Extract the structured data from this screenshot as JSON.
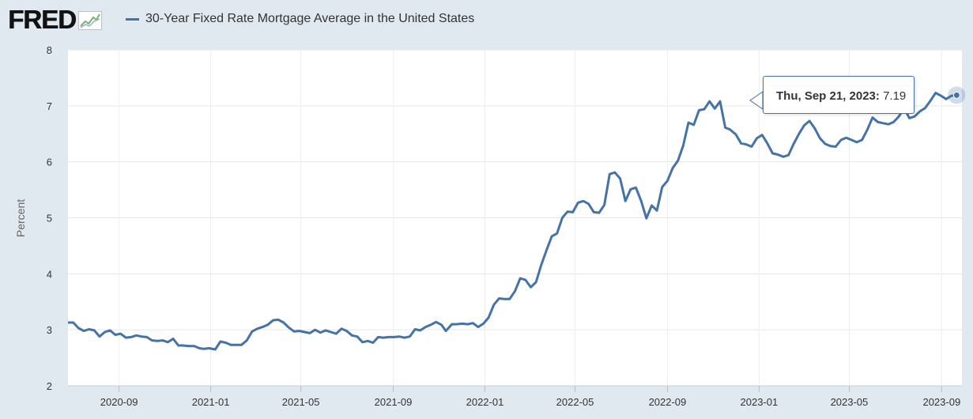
{
  "header": {
    "logo_text": "FRED",
    "logo_icon": "fred-graph-icon",
    "legend_label": "30-Year Fixed Rate Mortgage Average in the United States",
    "series_color": "#4572a7"
  },
  "tooltip": {
    "date": "Thu, Sep 21, 2023:",
    "value": "7.19"
  },
  "chart_data": {
    "type": "line",
    "title": "",
    "xlabel": "",
    "ylabel": "Percent",
    "ylim": [
      2,
      8
    ],
    "xlim": [
      "2020-06-25",
      "2023-09-28"
    ],
    "yticks": [
      2,
      3,
      4,
      5,
      6,
      7,
      8
    ],
    "xticks": [
      "2020-09",
      "2021-01",
      "2021-05",
      "2021-09",
      "2022-01",
      "2022-05",
      "2022-09",
      "2023-01",
      "2023-05",
      "2023-09"
    ],
    "grid": true,
    "legend": "top-left",
    "series": [
      {
        "name": "30-Year Fixed Rate Mortgage Average in the United States",
        "color": "#4572a7",
        "x": [
          "2020-06-25",
          "2020-07-02",
          "2020-07-09",
          "2020-07-16",
          "2020-07-23",
          "2020-07-30",
          "2020-08-06",
          "2020-08-13",
          "2020-08-20",
          "2020-08-27",
          "2020-09-03",
          "2020-09-10",
          "2020-09-17",
          "2020-09-24",
          "2020-10-01",
          "2020-10-08",
          "2020-10-15",
          "2020-10-22",
          "2020-10-29",
          "2020-11-05",
          "2020-11-12",
          "2020-11-19",
          "2020-11-25",
          "2020-12-03",
          "2020-12-10",
          "2020-12-17",
          "2020-12-23",
          "2020-12-30",
          "2021-01-07",
          "2021-01-14",
          "2021-01-21",
          "2021-01-28",
          "2021-02-04",
          "2021-02-11",
          "2021-02-18",
          "2021-02-25",
          "2021-03-04",
          "2021-03-11",
          "2021-03-18",
          "2021-03-25",
          "2021-04-01",
          "2021-04-08",
          "2021-04-15",
          "2021-04-22",
          "2021-04-29",
          "2021-05-06",
          "2021-05-13",
          "2021-05-20",
          "2021-05-27",
          "2021-06-03",
          "2021-06-10",
          "2021-06-17",
          "2021-06-24",
          "2021-07-01",
          "2021-07-08",
          "2021-07-15",
          "2021-07-22",
          "2021-07-29",
          "2021-08-05",
          "2021-08-12",
          "2021-08-19",
          "2021-08-26",
          "2021-09-02",
          "2021-09-09",
          "2021-09-16",
          "2021-09-23",
          "2021-09-30",
          "2021-10-07",
          "2021-10-14",
          "2021-10-21",
          "2021-10-28",
          "2021-11-04",
          "2021-11-10",
          "2021-11-18",
          "2021-11-24",
          "2021-12-02",
          "2021-12-09",
          "2021-12-16",
          "2021-12-23",
          "2021-12-30",
          "2022-01-06",
          "2022-01-13",
          "2022-01-20",
          "2022-01-27",
          "2022-02-03",
          "2022-02-10",
          "2022-02-17",
          "2022-02-24",
          "2022-03-03",
          "2022-03-10",
          "2022-03-17",
          "2022-03-24",
          "2022-03-31",
          "2022-04-07",
          "2022-04-14",
          "2022-04-21",
          "2022-04-28",
          "2022-05-05",
          "2022-05-12",
          "2022-05-19",
          "2022-05-26",
          "2022-06-02",
          "2022-06-09",
          "2022-06-16",
          "2022-06-23",
          "2022-06-30",
          "2022-07-07",
          "2022-07-14",
          "2022-07-21",
          "2022-07-28",
          "2022-08-04",
          "2022-08-11",
          "2022-08-18",
          "2022-08-25",
          "2022-09-01",
          "2022-09-08",
          "2022-09-15",
          "2022-09-22",
          "2022-09-29",
          "2022-10-06",
          "2022-10-13",
          "2022-10-20",
          "2022-10-27",
          "2022-11-03",
          "2022-11-10",
          "2022-11-17",
          "2022-11-23",
          "2022-12-01",
          "2022-12-08",
          "2022-12-15",
          "2022-12-22",
          "2022-12-29",
          "2023-01-05",
          "2023-01-12",
          "2023-01-19",
          "2023-01-26",
          "2023-02-02",
          "2023-02-09",
          "2023-02-16",
          "2023-02-23",
          "2023-03-02",
          "2023-03-09",
          "2023-03-16",
          "2023-03-23",
          "2023-03-30",
          "2023-04-06",
          "2023-04-13",
          "2023-04-20",
          "2023-04-27",
          "2023-05-04",
          "2023-05-11",
          "2023-05-18",
          "2023-05-25",
          "2023-06-01",
          "2023-06-08",
          "2023-06-15",
          "2023-06-22",
          "2023-06-29",
          "2023-07-06",
          "2023-07-13",
          "2023-07-20",
          "2023-07-27",
          "2023-08-03",
          "2023-08-10",
          "2023-08-17",
          "2023-08-24",
          "2023-08-31",
          "2023-09-07",
          "2023-09-14",
          "2023-09-21"
        ],
        "y": [
          3.13,
          3.13,
          3.03,
          2.98,
          3.01,
          2.99,
          2.88,
          2.96,
          2.99,
          2.91,
          2.93,
          2.86,
          2.87,
          2.9,
          2.88,
          2.87,
          2.81,
          2.8,
          2.81,
          2.78,
          2.84,
          2.72,
          2.72,
          2.71,
          2.71,
          2.67,
          2.66,
          2.67,
          2.65,
          2.79,
          2.77,
          2.73,
          2.73,
          2.73,
          2.81,
          2.97,
          3.02,
          3.05,
          3.09,
          3.17,
          3.18,
          3.13,
          3.04,
          2.97,
          2.98,
          2.96,
          2.94,
          3.0,
          2.95,
          2.99,
          2.96,
          2.93,
          3.02,
          2.98,
          2.9,
          2.88,
          2.78,
          2.8,
          2.77,
          2.87,
          2.86,
          2.87,
          2.87,
          2.88,
          2.86,
          2.88,
          3.01,
          2.99,
          3.05,
          3.09,
          3.14,
          3.09,
          2.98,
          3.1,
          3.1,
          3.11,
          3.1,
          3.12,
          3.05,
          3.11,
          3.22,
          3.45,
          3.56,
          3.55,
          3.55,
          3.69,
          3.92,
          3.89,
          3.76,
          3.85,
          4.16,
          4.42,
          4.67,
          4.72,
          5.0,
          5.11,
          5.1,
          5.27,
          5.3,
          5.25,
          5.1,
          5.09,
          5.23,
          5.78,
          5.81,
          5.7,
          5.3,
          5.51,
          5.54,
          5.3,
          4.99,
          5.22,
          5.13,
          5.55,
          5.66,
          5.89,
          6.02,
          6.29,
          6.7,
          6.66,
          6.92,
          6.94,
          7.08,
          6.95,
          7.08,
          6.61,
          6.58,
          6.49,
          6.33,
          6.31,
          6.27,
          6.42,
          6.48,
          6.33,
          6.15,
          6.13,
          6.09,
          6.12,
          6.32,
          6.5,
          6.65,
          6.73,
          6.6,
          6.42,
          6.32,
          6.28,
          6.27,
          6.39,
          6.43,
          6.39,
          6.35,
          6.39,
          6.57,
          6.79,
          6.71,
          6.69,
          6.67,
          6.71,
          6.81,
          6.96,
          6.78,
          6.81,
          6.9,
          6.96,
          7.09,
          7.23,
          7.18,
          7.12,
          7.18,
          7.19
        ]
      }
    ]
  }
}
